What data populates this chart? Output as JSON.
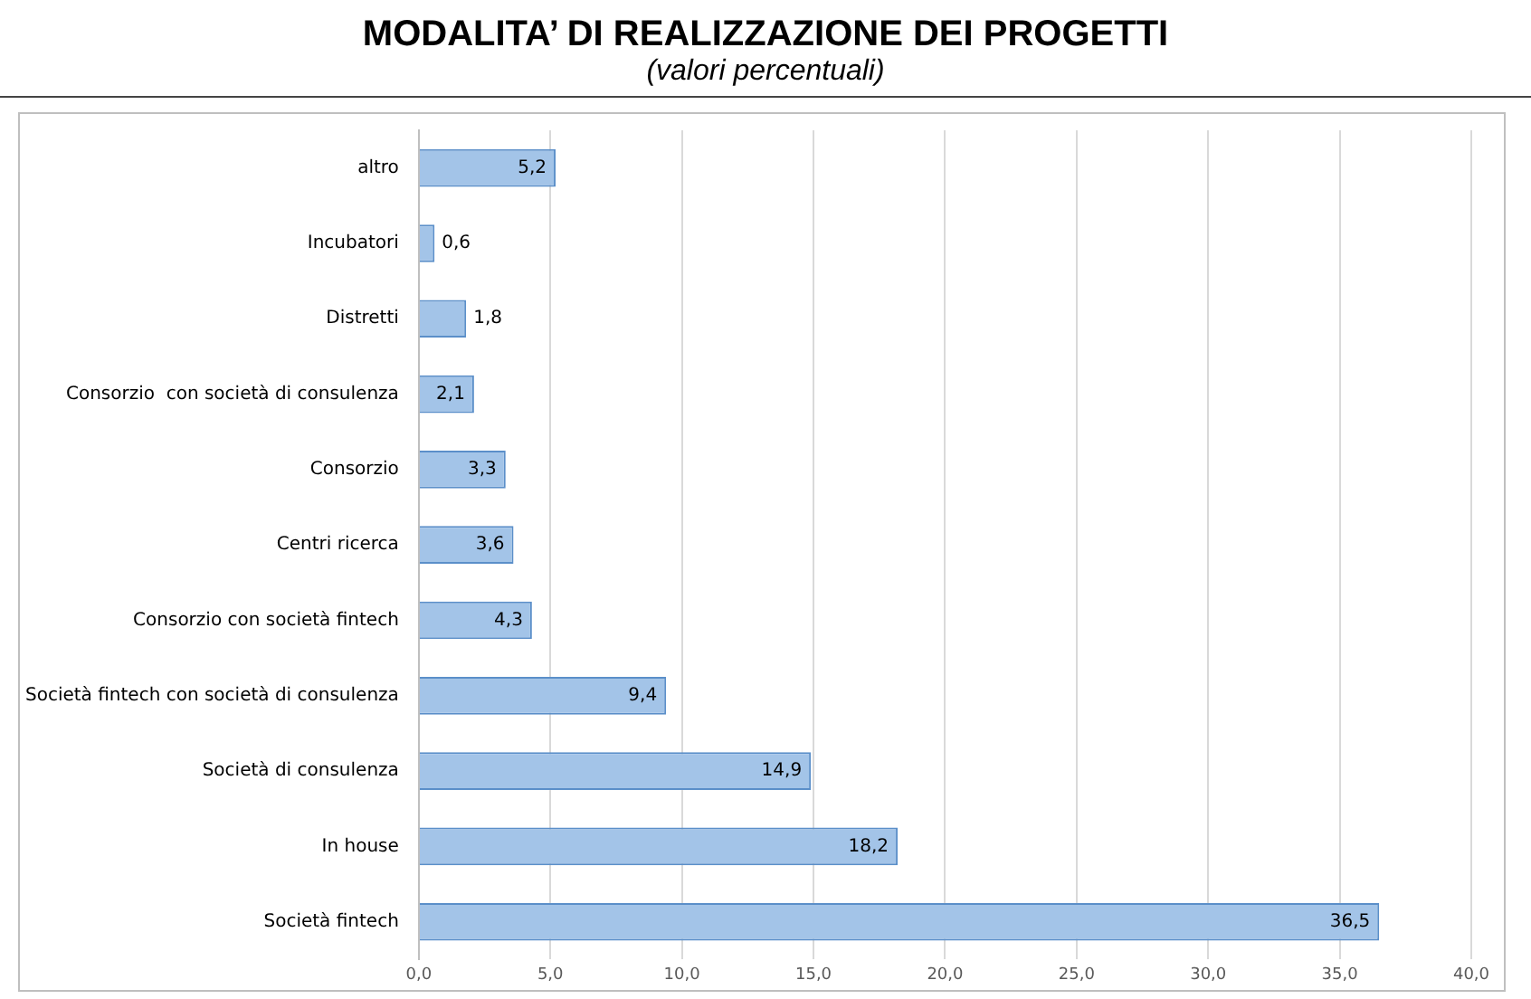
{
  "chart_data": {
    "type": "bar",
    "title": "MODALITA’ DI REALIZZAZIONE DEI PROGETTI",
    "subtitle": "(valori percentuali)",
    "orientation": "horizontal",
    "categories": [
      "altro",
      "Incubatori",
      "Distretti",
      "Consorzio  con società di consulenza",
      "Consorzio",
      "Centri ricerca",
      "Consorzio con società fintech",
      "Società fintech con società di consulenza",
      "Società di consulenza",
      "In house",
      "Società fintech"
    ],
    "values": [
      5.2,
      0.6,
      1.8,
      2.1,
      3.3,
      3.6,
      4.3,
      9.4,
      14.9,
      18.2,
      36.5
    ],
    "value_labels": [
      "5,2",
      "0,6",
      "1,8",
      "2,1",
      "3,3",
      "3,6",
      "4,3",
      "9,4",
      "14,9",
      "18,2",
      "36,5"
    ],
    "color": "#a3c4e8",
    "xlim": [
      0,
      40
    ],
    "xticks": [
      {
        "value": 0,
        "label": "0,0"
      },
      {
        "value": 5,
        "label": "5,0"
      },
      {
        "value": 10,
        "label": "10,0"
      },
      {
        "value": 15,
        "label": "15,0"
      },
      {
        "value": 20,
        "label": "20,0"
      },
      {
        "value": 25,
        "label": "25,0"
      },
      {
        "value": 30,
        "label": "30,0"
      },
      {
        "value": 35,
        "label": "35,0"
      },
      {
        "value": 40,
        "label": "40,0"
      }
    ],
    "grid": "x",
    "legend": false
  }
}
